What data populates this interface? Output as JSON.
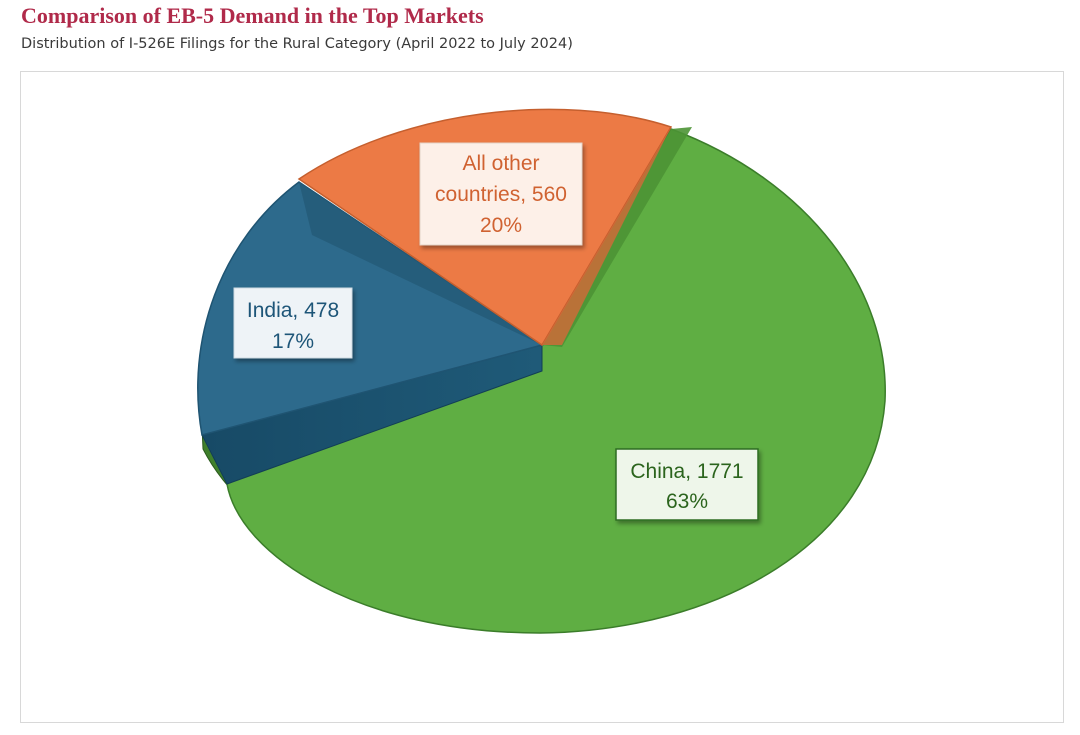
{
  "header": {
    "title": "Comparison of EB-5 Demand in the Top Markets",
    "subtitle": "Distribution of I-526E Filings for the Rural Category (April 2022 to July 2024)"
  },
  "chart_data": {
    "type": "pie",
    "style": "3d-exploded",
    "title": "",
    "legend": "none",
    "slices": [
      {
        "label": "China",
        "value": 1771,
        "percent": "63%",
        "color": "#5fae43",
        "label_line1": "China, 1771",
        "label_line2": "63%"
      },
      {
        "label": "India",
        "value": 478,
        "percent": "17%",
        "color": "#2d6a8c",
        "label_line1": "India, 478",
        "label_line2": "17%"
      },
      {
        "label": "All other countries",
        "value": 560,
        "percent": "20%",
        "color": "#ec7a45",
        "label_line1": "All other",
        "label_line1b": "countries, 560",
        "label_line2": "20%"
      }
    ]
  }
}
